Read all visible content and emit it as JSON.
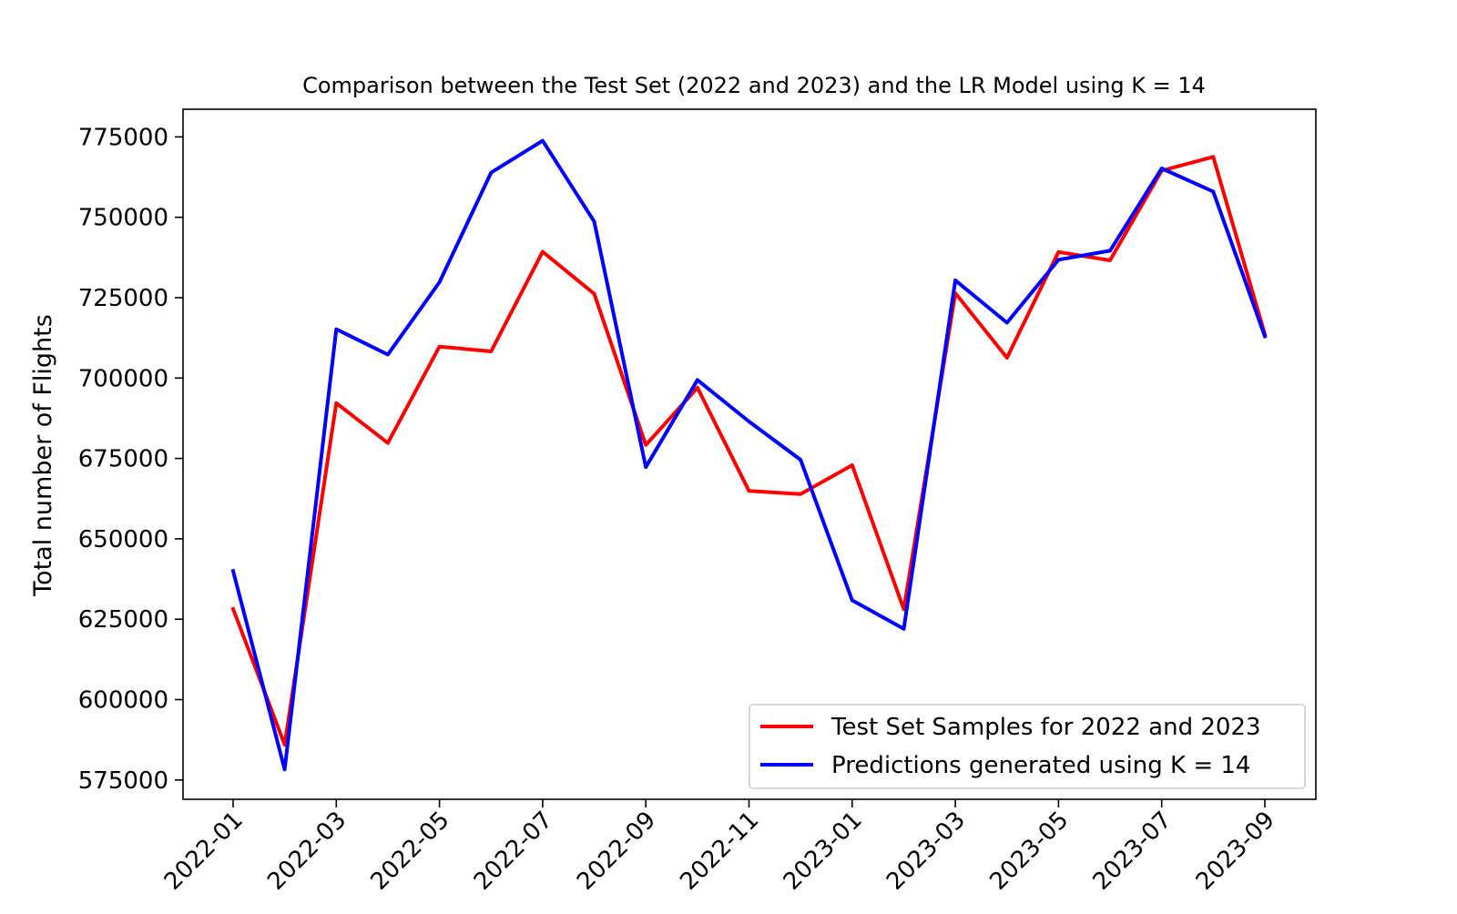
{
  "chart_data": {
    "type": "line",
    "title": "Comparison between the Test Set (2022 and 2023) and the LR Model using K = 14",
    "xlabel": "",
    "ylabel": "Total number of Flights",
    "x": [
      "2022-01",
      "2022-02",
      "2022-03",
      "2022-04",
      "2022-05",
      "2022-06",
      "2022-07",
      "2022-08",
      "2022-09",
      "2022-10",
      "2022-11",
      "2022-12",
      "2023-01",
      "2023-02",
      "2023-03",
      "2023-04",
      "2023-05",
      "2023-06",
      "2023-07",
      "2023-08",
      "2023-09"
    ],
    "xticks": [
      "2022-01",
      "2022-03",
      "2022-05",
      "2022-07",
      "2022-09",
      "2022-11",
      "2023-01",
      "2023-03",
      "2023-05",
      "2023-07",
      "2023-09"
    ],
    "yticks": [
      575000,
      600000,
      625000,
      650000,
      675000,
      700000,
      725000,
      750000,
      775000
    ],
    "ylim": [
      569000,
      783600
    ],
    "grid": false,
    "legend_position": "lower right",
    "series": [
      {
        "name": "Test Set Samples for 2022 and 2023",
        "color": "#ff0000",
        "values": [
          628200,
          586000,
          692200,
          679800,
          709800,
          708300,
          739300,
          726200,
          679200,
          697000,
          664900,
          663900,
          672900,
          628100,
          726400,
          706300,
          739200,
          736600,
          764500,
          768800,
          713600
        ]
      },
      {
        "name": "Predictions generated using K = 14",
        "color": "#0000ff",
        "values": [
          640000,
          578300,
          715200,
          707300,
          729800,
          763900,
          773800,
          748700,
          672300,
          699400,
          686500,
          674600,
          630900,
          622000,
          730400,
          717200,
          736800,
          739600,
          765200,
          758000,
          713000
        ]
      }
    ]
  }
}
